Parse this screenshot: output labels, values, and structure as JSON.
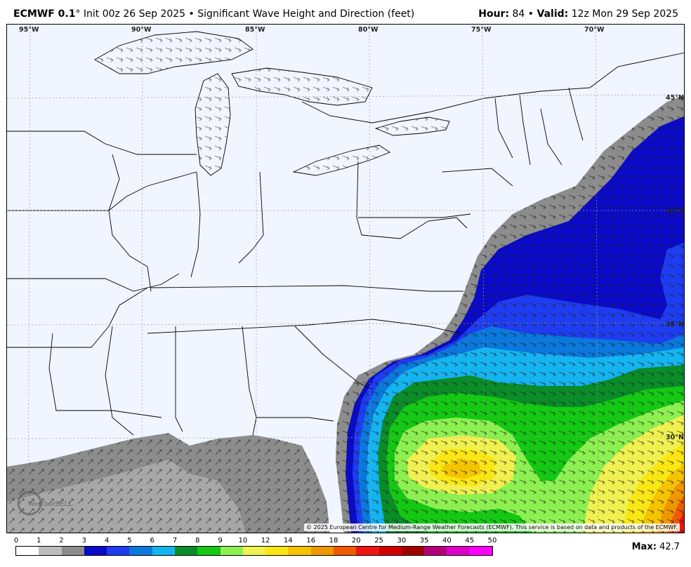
{
  "header": {
    "model": "ECMWF 0.1",
    "model_degree": "°",
    "init": "Init 00z 26 Sep 2025",
    "separator": "•",
    "product": "Significant Wave Height and Direction (feet)",
    "hour_label": "Hour:",
    "hour_value": "84",
    "valid_label": "Valid:",
    "valid_value": "12z Mon 29 Sep 2025"
  },
  "map": {
    "lon_labels": [
      "95°W",
      "90°W",
      "85°W",
      "80°W",
      "75°W",
      "70°W"
    ],
    "lat_labels": [
      "45°N",
      "40°N",
      "35°N",
      "30°N"
    ],
    "copyright": "© 2025 European Centre for Medium-Range Weather Forecasts (ECMWF). This service is based on data and products of the ECMWF.",
    "logo_text": "WeatherBELL",
    "max_wave_location": "Atlantic, east of Florida"
  },
  "legend": {
    "ticks": [
      "0",
      "1",
      "2",
      "3",
      "4",
      "5",
      "6",
      "7",
      "8",
      "9",
      "10",
      "12",
      "14",
      "16",
      "18",
      "20",
      "25",
      "30",
      "35",
      "40",
      "45",
      "50"
    ],
    "colors": [
      "#ffffff",
      "#bdbdbd",
      "#8c8c8c",
      "#0a0ac8",
      "#1e3cf0",
      "#0a78dc",
      "#14b4f0",
      "#0a8c28",
      "#14c814",
      "#8cf050",
      "#f0f050",
      "#fae614",
      "#f5c300",
      "#f09600",
      "#f05a00",
      "#f01414",
      "#d20000",
      "#a00000",
      "#b40078",
      "#dc00c8",
      "#ff00ff"
    ]
  },
  "max": {
    "label": "Max:",
    "value": "42.7"
  },
  "colors": {
    "land": "#f0f5ff",
    "ocean_calm": "#8c8c8c",
    "ocean_dark": "#0a0ac8"
  }
}
